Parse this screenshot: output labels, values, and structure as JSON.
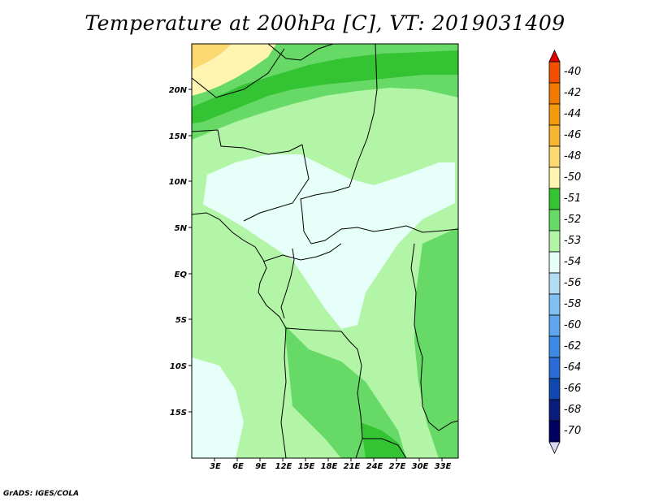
{
  "title": "Temperature at 200hPa [C], VT: 2019031409",
  "credit": "GrADS: IGES/COLA",
  "map": {
    "lat_labels": [
      "20N",
      "15N",
      "10N",
      "5N",
      "EQ",
      "5S",
      "10S",
      "15S"
    ],
    "lon_labels": [
      "3E",
      "6E",
      "9E",
      "12E",
      "15E",
      "18E",
      "21E",
      "24E",
      "27E",
      "30E",
      "33E"
    ]
  },
  "colorbar": {
    "labels": [
      "-40",
      "-42",
      "-44",
      "-46",
      "-48",
      "-50",
      "-51",
      "-52",
      "-53",
      "-54",
      "-56",
      "-58",
      "-60",
      "-62",
      "-64",
      "-66",
      "-68",
      "-70"
    ],
    "colors": [
      "#e00000",
      "#f05000",
      "#f37a00",
      "#f59a0c",
      "#f8b530",
      "#fcd870",
      "#fff5b0",
      "#33c333",
      "#66d966",
      "#b3f5a6",
      "#e6fff8",
      "#b3dcf5",
      "#80c0f2",
      "#5ea6ee",
      "#3d8ae6",
      "#2a6cd6",
      "#1246b0",
      "#0a1c7c",
      "#000060",
      "#d8d8f4"
    ]
  }
}
